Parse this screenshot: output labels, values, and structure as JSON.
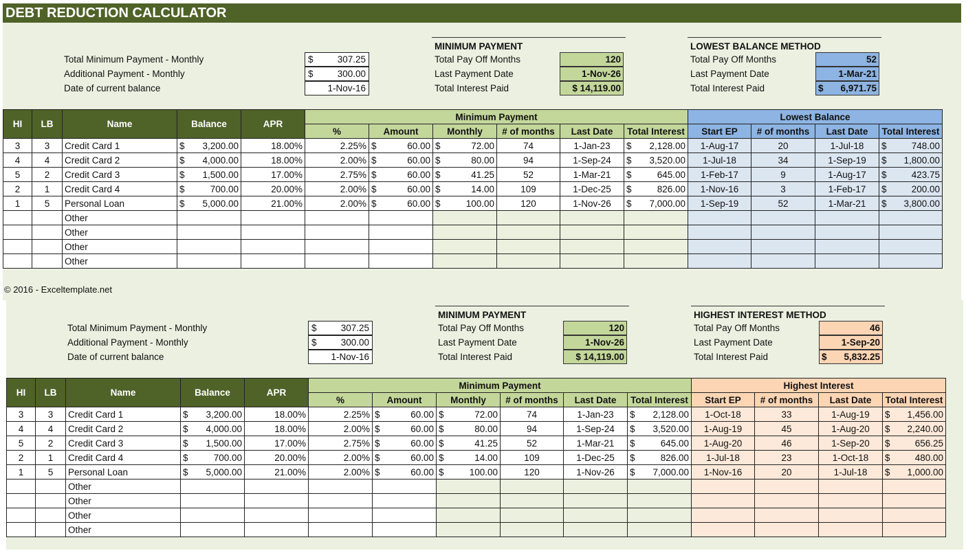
{
  "title": "DEBT REDUCTION CALCULATOR",
  "footer": "© 2016 - Exceltemplate.net",
  "colors": {
    "header": "#4f6228",
    "min_header": "#c4d79b",
    "min_cell": "#ebf1de",
    "lb_header": "#8db4e2",
    "lb_cell": "#dce6f1",
    "hi_header": "#fcd5b4",
    "hi_cell": "#fde9d9",
    "background": "#ebf0e0"
  },
  "blocks": [
    {
      "inputs": [
        {
          "label": "Total Minimum Payment - Monthly",
          "currency": "$",
          "value": "307.25"
        },
        {
          "label": "Additional Payment - Monthly",
          "currency": "$",
          "value": "300.00"
        },
        {
          "label": "Date of current balance",
          "currency": "",
          "value": "1-Nov-16"
        }
      ],
      "min_panel": {
        "title": "MINIMUM PAYMENT",
        "rows": [
          {
            "label": "Total Pay Off Months",
            "currency": "",
            "value": "120"
          },
          {
            "label": "Last Payment Date",
            "currency": "",
            "value": "1-Nov-26"
          },
          {
            "label": "Total Interest Paid",
            "currency": "",
            "value": "$ 14,119.00"
          }
        ]
      },
      "method_panel": {
        "title": "LOWEST BALANCE METHOD",
        "rows": [
          {
            "label": "Total Pay Off Months",
            "currency": "",
            "value": "52"
          },
          {
            "label": "Last Payment Date",
            "currency": "",
            "value": "1-Mar-21"
          },
          {
            "label": "Total Interest Paid",
            "currency": "$",
            "value": "6,971.75"
          }
        ]
      },
      "method_key": "lb",
      "table": {
        "headers": {
          "hi": "HI",
          "lb": "LB",
          "name": "Name",
          "balance": "Balance",
          "apr": "APR",
          "min_group": "Minimum Payment",
          "method_group": "Lowest Balance",
          "sub": [
            "%",
            "Amount",
            "Monthly",
            "# of months",
            "Last Date",
            "Total Interest",
            "Start EP",
            "# of months",
            "Last Date",
            "Total Interest"
          ]
        },
        "rows": [
          [
            "3",
            "3",
            "Credit Card 1",
            "3,200.00",
            "18.00%",
            "2.25%",
            "60.00",
            "72.00",
            "74",
            "1-Jan-23",
            "2,128.00",
            "1-Aug-17",
            "20",
            "1-Jul-18",
            "748.00"
          ],
          [
            "4",
            "4",
            "Credit Card 2",
            "4,000.00",
            "18.00%",
            "2.00%",
            "60.00",
            "80.00",
            "94",
            "1-Sep-24",
            "3,520.00",
            "1-Jul-18",
            "34",
            "1-Sep-19",
            "1,800.00"
          ],
          [
            "5",
            "2",
            "Credit Card 3",
            "1,500.00",
            "17.00%",
            "2.75%",
            "60.00",
            "41.25",
            "52",
            "1-Mar-21",
            "645.00",
            "1-Feb-17",
            "9",
            "1-Aug-17",
            "423.75"
          ],
          [
            "2",
            "1",
            "Credit Card 4",
            "700.00",
            "20.00%",
            "2.00%",
            "60.00",
            "14.00",
            "109",
            "1-Dec-25",
            "826.00",
            "1-Nov-16",
            "3",
            "1-Feb-17",
            "200.00"
          ],
          [
            "1",
            "5",
            "Personal Loan",
            "5,000.00",
            "21.00%",
            "2.00%",
            "60.00",
            "100.00",
            "120",
            "1-Nov-26",
            "7,000.00",
            "1-Sep-19",
            "52",
            "1-Mar-21",
            "3,800.00"
          ],
          [
            "",
            "",
            "Other",
            "",
            "",
            "",
            "",
            "",
            "",
            "",
            "",
            "",
            "",
            "",
            ""
          ],
          [
            "",
            "",
            "Other",
            "",
            "",
            "",
            "",
            "",
            "",
            "",
            "",
            "",
            "",
            "",
            ""
          ],
          [
            "",
            "",
            "Other",
            "",
            "",
            "",
            "",
            "",
            "",
            "",
            "",
            "",
            "",
            "",
            ""
          ],
          [
            "",
            "",
            "Other",
            "",
            "",
            "",
            "",
            "",
            "",
            "",
            "",
            "",
            "",
            "",
            ""
          ]
        ],
        "currency_symbol": "$"
      }
    },
    {
      "inputs": [
        {
          "label": "Total Minimum Payment - Monthly",
          "currency": "$",
          "value": "307.25"
        },
        {
          "label": "Additional Payment - Monthly",
          "currency": "$",
          "value": "300.00"
        },
        {
          "label": "Date of current balance",
          "currency": "",
          "value": "1-Nov-16"
        }
      ],
      "min_panel": {
        "title": "MINIMUM PAYMENT",
        "rows": [
          {
            "label": "Total Pay Off Months",
            "currency": "",
            "value": "120"
          },
          {
            "label": "Last Payment Date",
            "currency": "",
            "value": "1-Nov-26"
          },
          {
            "label": "Total Interest Paid",
            "currency": "",
            "value": "$ 14,119.00"
          }
        ]
      },
      "method_panel": {
        "title": "HIGHEST INTEREST METHOD",
        "rows": [
          {
            "label": "Total Pay Off Months",
            "currency": "",
            "value": "46"
          },
          {
            "label": "Last Payment Date",
            "currency": "",
            "value": "1-Sep-20"
          },
          {
            "label": "Total Interest Paid",
            "currency": "$",
            "value": "5,832.25"
          }
        ]
      },
      "method_key": "hi",
      "table": {
        "headers": {
          "hi": "HI",
          "lb": "LB",
          "name": "Name",
          "balance": "Balance",
          "apr": "APR",
          "min_group": "Minimum Payment",
          "method_group": "Highest Interest",
          "sub": [
            "%",
            "Amount",
            "Monthly",
            "# of months",
            "Last Date",
            "Total Interest",
            "Start EP",
            "# of months",
            "Last Date",
            "Total Interest"
          ]
        },
        "rows": [
          [
            "3",
            "3",
            "Credit Card 1",
            "3,200.00",
            "18.00%",
            "2.25%",
            "60.00",
            "72.00",
            "74",
            "1-Jan-23",
            "2,128.00",
            "1-Oct-18",
            "33",
            "1-Aug-19",
            "1,456.00"
          ],
          [
            "4",
            "4",
            "Credit Card 2",
            "4,000.00",
            "18.00%",
            "2.00%",
            "60.00",
            "80.00",
            "94",
            "1-Sep-24",
            "3,520.00",
            "1-Aug-19",
            "45",
            "1-Aug-20",
            "2,240.00"
          ],
          [
            "5",
            "2",
            "Credit Card 3",
            "1,500.00",
            "17.00%",
            "2.75%",
            "60.00",
            "41.25",
            "52",
            "1-Mar-21",
            "645.00",
            "1-Aug-20",
            "46",
            "1-Sep-20",
            "656.25"
          ],
          [
            "2",
            "1",
            "Credit Card 4",
            "700.00",
            "20.00%",
            "2.00%",
            "60.00",
            "14.00",
            "109",
            "1-Dec-25",
            "826.00",
            "1-Jul-18",
            "23",
            "1-Oct-18",
            "480.00"
          ],
          [
            "1",
            "5",
            "Personal Loan",
            "5,000.00",
            "21.00%",
            "2.00%",
            "60.00",
            "100.00",
            "120",
            "1-Nov-26",
            "7,000.00",
            "1-Nov-16",
            "20",
            "1-Jul-18",
            "1,000.00"
          ],
          [
            "",
            "",
            "Other",
            "",
            "",
            "",
            "",
            "",
            "",
            "",
            "",
            "",
            "",
            "",
            ""
          ],
          [
            "",
            "",
            "Other",
            "",
            "",
            "",
            "",
            "",
            "",
            "",
            "",
            "",
            "",
            "",
            ""
          ],
          [
            "",
            "",
            "Other",
            "",
            "",
            "",
            "",
            "",
            "",
            "",
            "",
            "",
            "",
            "",
            ""
          ],
          [
            "",
            "",
            "Other",
            "",
            "",
            "",
            "",
            "",
            "",
            "",
            "",
            "",
            "",
            "",
            ""
          ]
        ],
        "currency_symbol": "$"
      }
    }
  ]
}
